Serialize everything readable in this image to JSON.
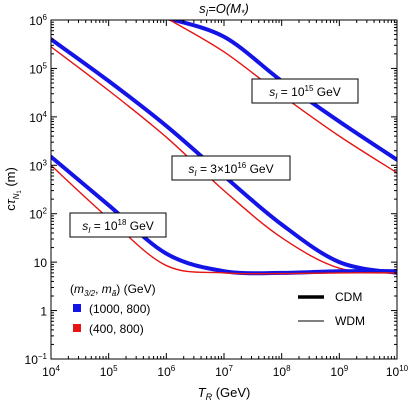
{
  "chart_data": {
    "type": "line",
    "title": "s_I = O(M_*)",
    "xlabel": "T_R (GeV)",
    "ylabel": "cτ_N1 (m)",
    "xscale": "log",
    "yscale": "log",
    "xlim": [
      10000,
      10000000000
    ],
    "ylim": [
      0.1,
      1000000
    ],
    "x_ticks": [
      {
        "base": "10",
        "exp": "4"
      },
      {
        "base": "10",
        "exp": "5"
      },
      {
        "base": "10",
        "exp": "6"
      },
      {
        "base": "10",
        "exp": "7"
      },
      {
        "base": "10",
        "exp": "8"
      },
      {
        "base": "10",
        "exp": "9"
      },
      {
        "base": "10",
        "exp": "10"
      }
    ],
    "y_ticks": [
      {
        "base": "10",
        "exp": "−1"
      },
      {
        "base": "1",
        "exp": ""
      },
      {
        "base": "10",
        "exp": ""
      },
      {
        "base": "10",
        "exp": "2"
      },
      {
        "base": "10",
        "exp": "3"
      },
      {
        "base": "10",
        "exp": "4"
      },
      {
        "base": "10",
        "exp": "5"
      },
      {
        "base": "10",
        "exp": "6"
      }
    ],
    "annotations": [
      {
        "text": "s_I = 10^15 GeV",
        "near_x": 2000000000.0,
        "near_y": 45000
      },
      {
        "text": "s_I = 3×10^16 GeV",
        "near_x": 15000000.0,
        "near_y": 450
      },
      {
        "text": "s_I = 10^18 GeV",
        "near_x": 110000.0,
        "near_y": 25
      }
    ],
    "legend": {
      "title": "(m_3/2, m_ã) (GeV)",
      "entries": [
        {
          "label": "(1000, 800)",
          "color": "#1414e6"
        },
        {
          "label": "(400, 800)",
          "color": "#e61414"
        }
      ],
      "style_entries": [
        {
          "label": "CDM",
          "style": "thick"
        },
        {
          "label": "WDM",
          "style": "thin"
        }
      ]
    },
    "colors": {
      "blue": "#1414e6",
      "red": "#e61414"
    },
    "series": [
      {
        "color": "blue",
        "style": "thick",
        "group": "s_I = 10^15 GeV",
        "x": [
          1000000.0,
          10000000.0,
          100000000.0,
          1000000000.0,
          10000000000.0
        ],
        "y": [
          1100000.0,
          450000,
          55000,
          8000,
          1300
        ]
      },
      {
        "color": "red",
        "style": "thin",
        "group": "s_I = 10^15 GeV",
        "x": [
          1150000.0,
          10000000.0,
          100000000.0,
          1000000000.0,
          10000000000.0
        ],
        "y": [
          1000000.0,
          220000,
          28000,
          4000,
          700
        ]
      },
      {
        "color": "blue",
        "style": "thick",
        "group": "s_I = 3×10^16 GeV",
        "x": [
          10000.0,
          100000.0,
          1000000.0,
          10000000.0,
          100000000.0,
          1000000000.0,
          10000000000.0
        ],
        "y": [
          400000,
          55000,
          6500,
          600,
          60,
          10,
          6
        ]
      },
      {
        "color": "red",
        "style": "thin",
        "group": "s_I = 3×10^16 GeV",
        "x": [
          10000.0,
          100000.0,
          1000000.0,
          10000000.0,
          100000000.0,
          1000000000.0,
          10000000000.0
        ],
        "y": [
          280000,
          35000,
          3800,
          300,
          32,
          7.5,
          6
        ]
      },
      {
        "color": "blue",
        "style": "thick",
        "group": "s_I = 10^18 GeV",
        "x": [
          10000.0,
          100000.0,
          1000000.0,
          10000000.0,
          100000000.0,
          1000000000.0,
          10000000000.0
        ],
        "y": [
          1500,
          150,
          15,
          6.5,
          6,
          6.5,
          6.5
        ]
      },
      {
        "color": "red",
        "style": "thin",
        "group": "s_I = 10^18 GeV",
        "x": [
          10000.0,
          100000.0,
          1000000.0,
          10000000.0,
          100000000.0,
          1000000000.0,
          10000000000.0
        ],
        "y": [
          1000,
          80,
          8.5,
          6,
          5.8,
          6,
          6
        ]
      }
    ]
  }
}
